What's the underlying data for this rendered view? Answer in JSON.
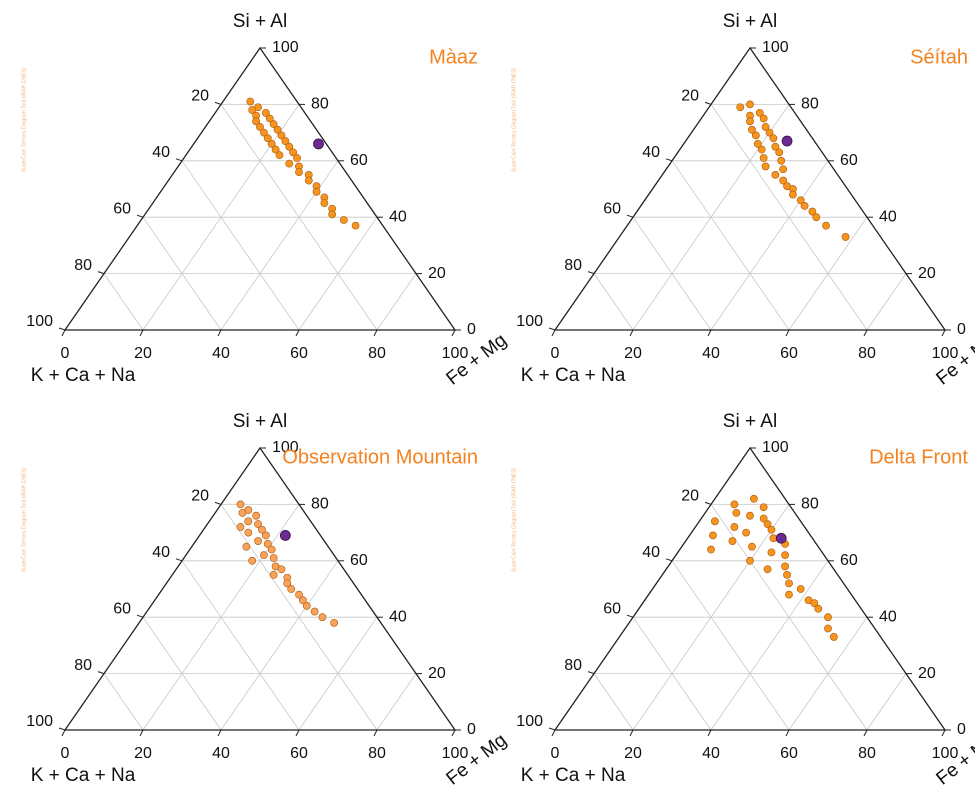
{
  "watermark": "SuperCam Ternary Diagram Tool (IRAP-CNES)",
  "chart_data": [
    {
      "type": "ternary",
      "title": "Màaz",
      "top_label": "Si + Al",
      "left_label": "K + Ca + Na",
      "right_label": "Fe + Mg",
      "point_color": "#f7941d",
      "mean_color": "#6a2c91",
      "left_ticks": [
        20,
        40,
        60,
        80,
        100
      ],
      "right_ticks": [
        100,
        80,
        60,
        40,
        20,
        0
      ],
      "bottom_ticks": [
        0,
        20,
        40,
        60,
        80,
        100
      ],
      "points": {
        "si_al": [
          81,
          79,
          78,
          77,
          76,
          75,
          74,
          73,
          72,
          71,
          70,
          69,
          68,
          67,
          66,
          65,
          64,
          63,
          62,
          61,
          59,
          58,
          56,
          55,
          53,
          51,
          49,
          47,
          45,
          43,
          41,
          39,
          37
        ],
        "fe_mg": [
          7,
          10,
          9,
          13,
          11,
          15,
          12,
          17,
          14,
          19,
          16,
          21,
          18,
          23,
          20,
          25,
          22,
          27,
          24,
          29,
          28,
          31,
          32,
          35,
          36,
          39,
          40,
          43,
          44,
          47,
          48,
          52,
          56
        ]
      },
      "mean": {
        "si_al": 66,
        "fe_mg": 32
      }
    },
    {
      "type": "ternary",
      "title": "Séítah",
      "top_label": "Si + Al",
      "left_label": "K + Ca + Na",
      "right_label": "Fe + Mg",
      "point_color": "#f7941d",
      "mean_color": "#6a2c91",
      "left_ticks": [
        20,
        40,
        60,
        80,
        100
      ],
      "right_ticks": [
        100,
        80,
        60,
        40,
        20,
        0
      ],
      "bottom_ticks": [
        0,
        20,
        40,
        60,
        80,
        100
      ],
      "points": {
        "si_al": [
          80,
          79,
          77,
          76,
          75,
          74,
          72,
          71,
          70,
          69,
          68,
          66,
          65,
          64,
          63,
          61,
          60,
          58,
          57,
          55,
          53,
          51,
          50,
          48,
          46,
          44,
          42,
          40,
          37,
          33
        ],
        "fe_mg": [
          10,
          8,
          14,
          12,
          16,
          13,
          18,
          15,
          20,
          17,
          22,
          19,
          24,
          21,
          26,
          23,
          28,
          25,
          30,
          29,
          32,
          34,
          36,
          37,
          40,
          42,
          45,
          47,
          51,
          58
        ]
      },
      "mean": {
        "si_al": 67,
        "fe_mg": 26
      }
    },
    {
      "type": "ternary",
      "title": "Observation Mountain",
      "top_label": "Si + Al",
      "left_label": "K + Ca + Na",
      "right_label": "Fe + Mg",
      "point_color": "#f9a25a",
      "mean_color": "#6a2c91",
      "left_ticks": [
        20,
        40,
        60,
        80,
        100
      ],
      "right_ticks": [
        100,
        80,
        60,
        40,
        20,
        0
      ],
      "bottom_ticks": [
        0,
        20,
        40,
        60,
        80,
        100
      ],
      "points": {
        "si_al": [
          80,
          78,
          77,
          76,
          74,
          73,
          72,
          71,
          70,
          69,
          67,
          66,
          65,
          64,
          62,
          61,
          60,
          58,
          57,
          55,
          54,
          52,
          50,
          48,
          46,
          44,
          42,
          40,
          38
        ],
        "fe_mg": [
          5,
          8,
          7,
          11,
          10,
          13,
          9,
          15,
          12,
          17,
          16,
          19,
          14,
          21,
          20,
          23,
          18,
          25,
          27,
          26,
          30,
          31,
          33,
          36,
          38,
          40,
          43,
          46,
          50
        ]
      },
      "mean": {
        "si_al": 69,
        "fe_mg": 22
      }
    },
    {
      "type": "ternary",
      "title": "Delta Front",
      "top_label": "Si + Al",
      "left_label": "K + Ca + Na",
      "right_label": "Fe + Mg",
      "point_color": "#f7941d",
      "mean_color": "#6a2c91",
      "left_ticks": [
        20,
        40,
        60,
        80,
        100
      ],
      "right_ticks": [
        100,
        80,
        60,
        40,
        20,
        0
      ],
      "bottom_ticks": [
        0,
        20,
        40,
        60,
        80,
        100
      ],
      "points": {
        "si_al": [
          82,
          80,
          79,
          77,
          76,
          75,
          74,
          73,
          72,
          71,
          70,
          69,
          68,
          67,
          66,
          65,
          64,
          63,
          62,
          60,
          58,
          57,
          55,
          52,
          50,
          48,
          46,
          45,
          43,
          40,
          36,
          33
        ],
        "fe_mg": [
          10,
          6,
          14,
          8,
          12,
          16,
          4,
          18,
          10,
          20,
          14,
          6,
          22,
          12,
          26,
          18,
          8,
          24,
          28,
          20,
          30,
          26,
          32,
          34,
          38,
          36,
          42,
          44,
          46,
          50,
          52,
          55
        ]
      },
      "mean": {
        "si_al": 68,
        "fe_mg": 24
      }
    }
  ]
}
